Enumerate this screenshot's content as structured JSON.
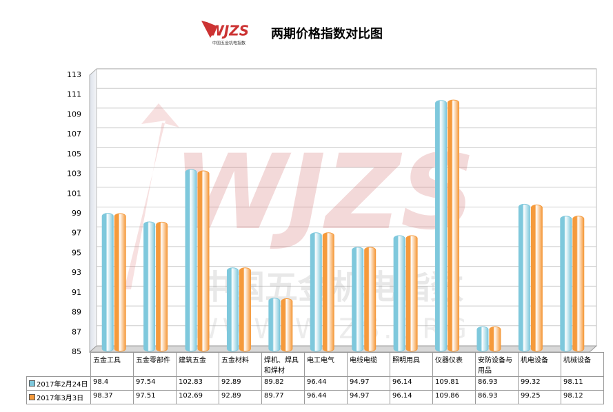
{
  "chart_data": {
    "type": "bar",
    "title": "两期价格指数对比图",
    "logo": {
      "brand": "WJZS",
      "name": "中国五金机电指数"
    },
    "watermark": {
      "brand": "WJZS",
      "name": "中国五金机电指数",
      "url": "WWW.WJZS.ORG"
    },
    "categories": [
      "五金工具",
      "五金零部件",
      "建筑五金",
      "五金材料",
      "焊机、焊具和焊材",
      "电工电气",
      "电线电缆",
      "照明用具",
      "仪器仪表",
      "安防设备与用品",
      "机电设备",
      "机械设备"
    ],
    "series": [
      {
        "name": "2017年2月24日",
        "color": "#7ec8dc",
        "values": [
          98.4,
          97.54,
          102.83,
          92.89,
          89.82,
          96.44,
          94.97,
          96.14,
          109.81,
          86.93,
          99.32,
          98.11
        ]
      },
      {
        "name": "2017年3月3日",
        "color": "#f59a3c",
        "values": [
          98.37,
          97.51,
          102.69,
          92.89,
          89.77,
          96.44,
          94.97,
          96.14,
          109.86,
          86.93,
          99.25,
          98.12
        ]
      }
    ],
    "ylim": [
      85,
      113
    ],
    "yticks": [
      85,
      87,
      89,
      91,
      93,
      95,
      97,
      99,
      101,
      103,
      105,
      107,
      109,
      111,
      113
    ],
    "grid": true
  }
}
